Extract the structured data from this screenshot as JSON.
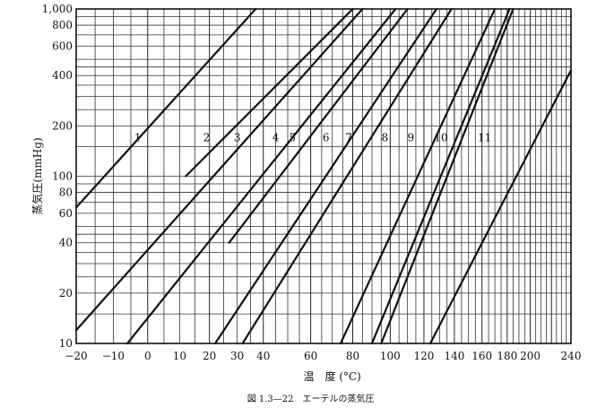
{
  "chart_data": {
    "type": "line",
    "title": "",
    "caption": "図 1.3—22　エーテルの蒸気圧",
    "xlabel": "温　度 (°C)",
    "ylabel": "蒸気圧(mmHg)",
    "x_scale": "reciprocal",
    "y_scale": "log",
    "xlim": [
      -20,
      240
    ],
    "ylim": [
      10,
      1000
    ],
    "grid": true,
    "x_grid": [
      -20,
      -15,
      -10,
      -5,
      0,
      5,
      10,
      15,
      20,
      25,
      30,
      35,
      40,
      45,
      50,
      55,
      60,
      65,
      70,
      75,
      80,
      85,
      90,
      95,
      100,
      105,
      110,
      115,
      120,
      125,
      130,
      135,
      140,
      145,
      150,
      155,
      160,
      165,
      170,
      175,
      180,
      185,
      190,
      195,
      200,
      205,
      210,
      215,
      220,
      225,
      230,
      235,
      240
    ],
    "x_ticks": [
      {
        "value": -20,
        "label": "−20"
      },
      {
        "value": -10,
        "label": "−10"
      },
      {
        "value": 0,
        "label": "0"
      },
      {
        "value": 10,
        "label": "10"
      },
      {
        "value": 20,
        "label": "20"
      },
      {
        "value": 30,
        "label": "30"
      },
      {
        "value": 40,
        "label": "40"
      },
      {
        "value": 60,
        "label": "60"
      },
      {
        "value": 80,
        "label": "80"
      },
      {
        "value": 100,
        "label": "100"
      },
      {
        "value": 120,
        "label": "120"
      },
      {
        "value": 140,
        "label": "140"
      },
      {
        "value": 160,
        "label": "160"
      },
      {
        "value": 180,
        "label": "180"
      },
      {
        "value": 200,
        "label": "200"
      },
      {
        "value": 240,
        "label": "240"
      }
    ],
    "y_grid": [
      10,
      15,
      20,
      25,
      30,
      35,
      40,
      45,
      50,
      60,
      70,
      80,
      90,
      100,
      150,
      200,
      250,
      300,
      350,
      400,
      450,
      500,
      600,
      700,
      800,
      900,
      1000
    ],
    "y_ticks": [
      {
        "value": 10,
        "label": "10"
      },
      {
        "value": 20,
        "label": "20"
      },
      {
        "value": 40,
        "label": "40"
      },
      {
        "value": 60,
        "label": "60"
      },
      {
        "value": 80,
        "label": "80"
      },
      {
        "value": 100,
        "label": "100"
      },
      {
        "value": 200,
        "label": "200"
      },
      {
        "value": 400,
        "label": "400"
      },
      {
        "value": 600,
        "label": "600"
      },
      {
        "value": 800,
        "label": "800"
      },
      {
        "value": 1000,
        "label": "1,000"
      }
    ],
    "series": [
      {
        "name": "1",
        "x": [
          -20,
          37
        ],
        "y": [
          65,
          1000
        ],
        "label_at": [
          -3,
          170
        ]
      },
      {
        "name": "2",
        "x": [
          12,
          80
        ],
        "y": [
          100,
          1000
        ],
        "label_at": [
          19,
          170
        ]
      },
      {
        "name": "3",
        "x": [
          -20,
          85
        ],
        "y": [
          12,
          1000
        ],
        "label_at": [
          30,
          170
        ]
      },
      {
        "name": "4",
        "x": [
          27,
          110
        ],
        "y": [
          40,
          1000
        ],
        "label_at": [
          45,
          170
        ]
      },
      {
        "name": "5",
        "x": [
          -6,
          103
        ],
        "y": [
          10,
          1000
        ],
        "label_at": [
          52,
          170
        ]
      },
      {
        "name": "6",
        "x": [
          22,
          128
        ],
        "y": [
          10,
          1000
        ],
        "label_at": [
          67,
          170
        ]
      },
      {
        "name": "7",
        "x": [
          32,
          138
        ],
        "y": [
          10,
          1000
        ],
        "label_at": [
          78,
          170
        ]
      },
      {
        "name": "8",
        "x": [
          74,
          170
        ],
        "y": [
          10,
          1000
        ],
        "label_at": [
          97,
          170
        ]
      },
      {
        "name": "9",
        "x": [
          90,
          182
        ],
        "y": [
          10,
          1000
        ],
        "label_at": [
          112,
          170
        ]
      },
      {
        "name": "10",
        "x": [
          95,
          185
        ],
        "y": [
          10,
          1000
        ],
        "label_at": [
          131,
          170
        ]
      },
      {
        "name": "11",
        "x": [
          124,
          240
        ],
        "y": [
          10,
          430
        ],
        "label_at": [
          162,
          170
        ]
      }
    ]
  }
}
